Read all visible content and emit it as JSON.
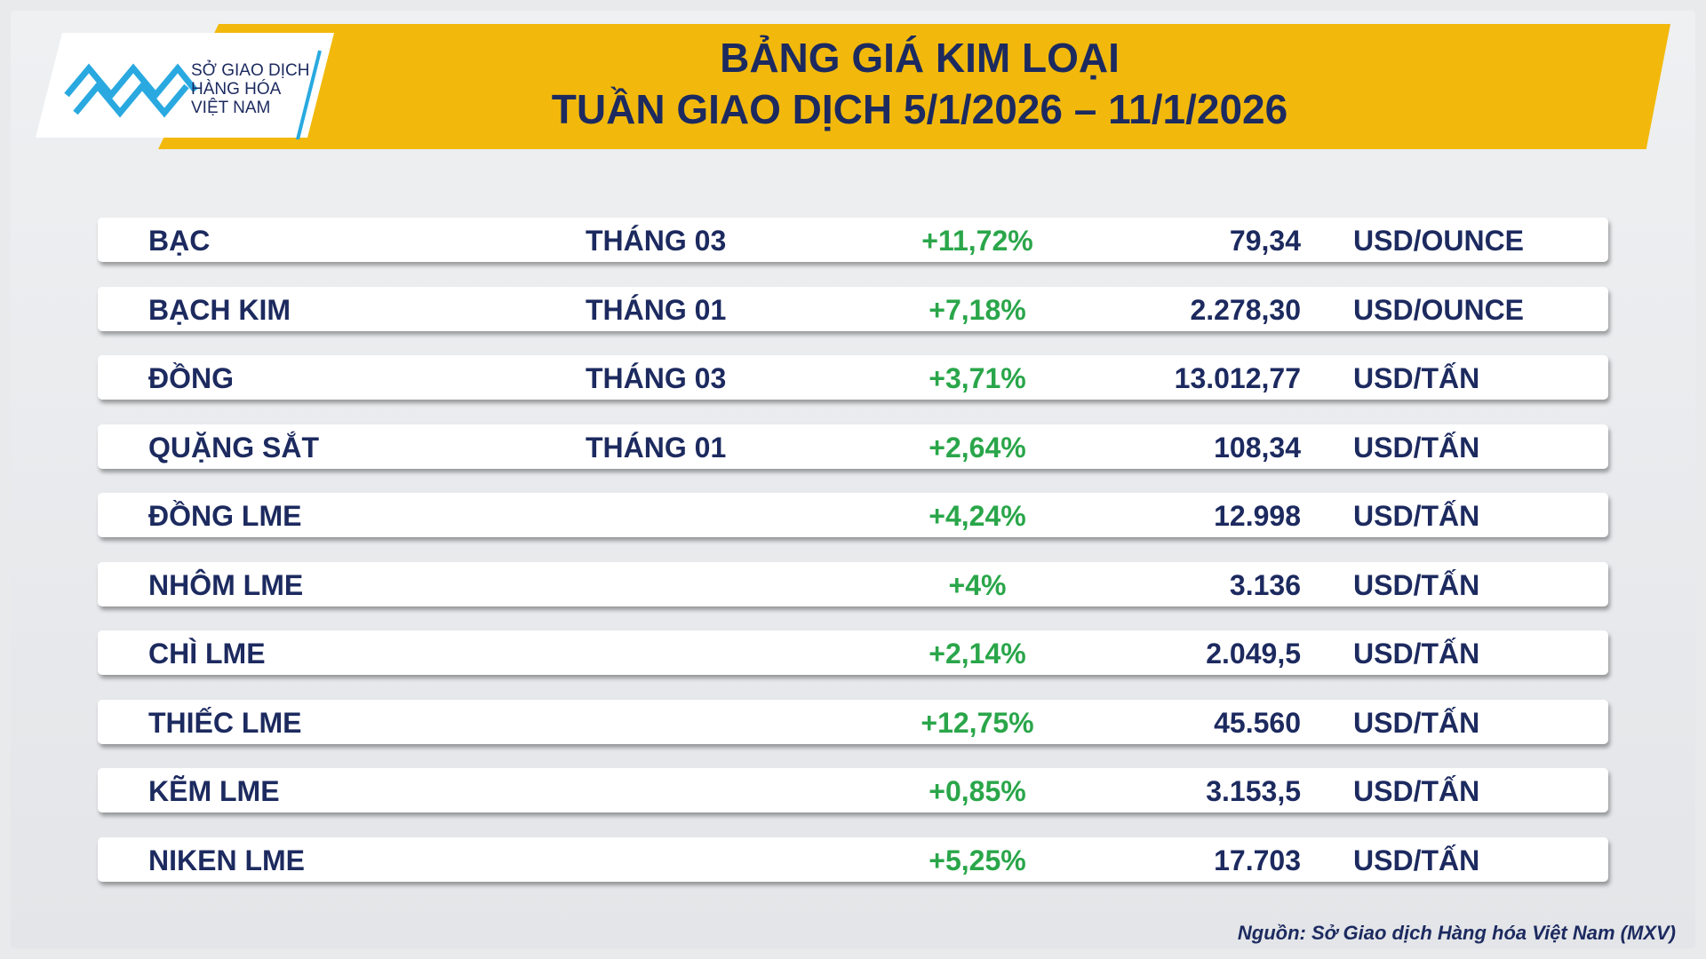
{
  "header": {
    "logo": [
      "SỞ GIAO DỊCH",
      "HÀNG HÓA",
      "VIỆT NAM"
    ],
    "title": [
      "BẢNG GIÁ KIM LOẠI",
      "TUẦN GIAO DỊCH 5/1/2026 – 11/1/2026"
    ]
  },
  "table": {
    "rows": [
      {
        "name": "BẠC",
        "month": "THÁNG 03",
        "change": "+11,72%",
        "price": "79,34",
        "unit": "USD/OUNCE"
      },
      {
        "name": "BẠCH KIM",
        "month": "THÁNG 01",
        "change": "+7,18%",
        "price": "2.278,30",
        "unit": "USD/OUNCE"
      },
      {
        "name": "ĐỒNG",
        "month": "THÁNG 03",
        "change": "+3,71%",
        "price": "13.012,77",
        "unit": "USD/TẤN"
      },
      {
        "name": "QUẶNG SẮT",
        "month": "THÁNG 01",
        "change": "+2,64%",
        "price": "108,34",
        "unit": "USD/TẤN"
      },
      {
        "name": "ĐỒNG LME",
        "change": "+4,24%",
        "price": "12.998",
        "unit": "USD/TẤN"
      },
      {
        "name": "NHÔM LME",
        "change": "+4%",
        "price": "3.136",
        "unit": "USD/TẤN"
      },
      {
        "name": "CHÌ LME",
        "change": "+2,14%",
        "price": "2.049,5",
        "unit": "USD/TẤN"
      },
      {
        "name": "THIẾC LME",
        "change": "+12,75%",
        "price": "45.560",
        "unit": "USD/TẤN"
      },
      {
        "name": "KẼM LME",
        "change": "+0,85%",
        "price": "3.153,5",
        "unit": "USD/TẤN"
      },
      {
        "name": "NIKEN LME",
        "change": "+5,25%",
        "price": "17.703",
        "unit": "USD/TẤN"
      }
    ]
  },
  "footer": {
    "source": "Nguồn: Sở Giao dịch Hàng hóa Việt Nam (MXV)"
  }
}
